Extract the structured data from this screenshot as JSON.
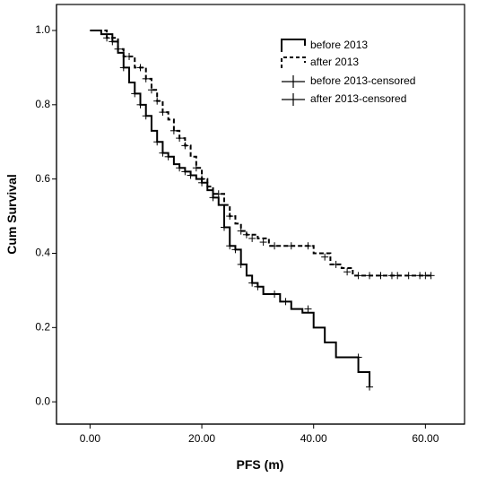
{
  "chart_data": {
    "type": "line",
    "subtype": "kaplan-meier step curve",
    "title": "",
    "xlabel": "PFS (m)",
    "ylabel": "Cum Survival",
    "xlim": [
      -6,
      67
    ],
    "ylim": [
      -0.06,
      1.07
    ],
    "x_ticks": [
      "0.00",
      "20.00",
      "40.00",
      "60.00"
    ],
    "x_tick_values": [
      0,
      20,
      40,
      60
    ],
    "y_ticks": [
      "0.0",
      "0.2",
      "0.4",
      "0.6",
      "0.8",
      "1.0"
    ],
    "y_tick_values": [
      0,
      0.2,
      0.4,
      0.6,
      0.8,
      1.0
    ],
    "grid": false,
    "legend_position": "top-right",
    "legend": [
      {
        "label": "before 2013",
        "style": "solid-step"
      },
      {
        "label": "after 2013",
        "style": "dashed-step"
      },
      {
        "label": "before 2013-censored",
        "style": "censor-mark"
      },
      {
        "label": "after 2013-censored",
        "style": "censor-mark"
      }
    ],
    "series": [
      {
        "name": "before 2013",
        "style": "solid",
        "points": [
          [
            0,
            1.0
          ],
          [
            2,
            0.99
          ],
          [
            4,
            0.97
          ],
          [
            5,
            0.94
          ],
          [
            6,
            0.9
          ],
          [
            7,
            0.86
          ],
          [
            8,
            0.83
          ],
          [
            9,
            0.8
          ],
          [
            10,
            0.77
          ],
          [
            11,
            0.73
          ],
          [
            12,
            0.7
          ],
          [
            13,
            0.67
          ],
          [
            14,
            0.66
          ],
          [
            15,
            0.64
          ],
          [
            16,
            0.63
          ],
          [
            17,
            0.62
          ],
          [
            18,
            0.61
          ],
          [
            19,
            0.6
          ],
          [
            20,
            0.59
          ],
          [
            21,
            0.57
          ],
          [
            22,
            0.55
          ],
          [
            23,
            0.53
          ],
          [
            24,
            0.47
          ],
          [
            25,
            0.42
          ],
          [
            26,
            0.41
          ],
          [
            27,
            0.37
          ],
          [
            28,
            0.34
          ],
          [
            29,
            0.32
          ],
          [
            30,
            0.31
          ],
          [
            31,
            0.29
          ],
          [
            34,
            0.27
          ],
          [
            36,
            0.25
          ],
          [
            38,
            0.24
          ],
          [
            40,
            0.2
          ],
          [
            42,
            0.16
          ],
          [
            44,
            0.12
          ],
          [
            48,
            0.08
          ],
          [
            50,
            0.04
          ]
        ],
        "censored": [
          [
            4,
            0.97
          ],
          [
            6,
            0.9
          ],
          [
            8,
            0.83
          ],
          [
            9,
            0.8
          ],
          [
            10,
            0.77
          ],
          [
            12,
            0.7
          ],
          [
            13,
            0.67
          ],
          [
            14,
            0.66
          ],
          [
            16,
            0.63
          ],
          [
            17,
            0.62
          ],
          [
            18,
            0.61
          ],
          [
            20,
            0.59
          ],
          [
            22,
            0.55
          ],
          [
            24,
            0.47
          ],
          [
            25,
            0.42
          ],
          [
            26,
            0.41
          ],
          [
            27,
            0.37
          ],
          [
            29,
            0.32
          ],
          [
            30,
            0.31
          ],
          [
            33,
            0.29
          ],
          [
            35,
            0.27
          ],
          [
            39,
            0.25
          ],
          [
            48,
            0.12
          ],
          [
            50,
            0.04
          ]
        ]
      },
      {
        "name": "after 2013",
        "style": "dashed",
        "points": [
          [
            0,
            1.0
          ],
          [
            3,
            0.98
          ],
          [
            5,
            0.95
          ],
          [
            6,
            0.93
          ],
          [
            8,
            0.9
          ],
          [
            10,
            0.87
          ],
          [
            11,
            0.84
          ],
          [
            12,
            0.81
          ],
          [
            13,
            0.78
          ],
          [
            14,
            0.76
          ],
          [
            15,
            0.73
          ],
          [
            16,
            0.71
          ],
          [
            17,
            0.69
          ],
          [
            18,
            0.66
          ],
          [
            19,
            0.63
          ],
          [
            20,
            0.6
          ],
          [
            21,
            0.58
          ],
          [
            22,
            0.56
          ],
          [
            24,
            0.53
          ],
          [
            25,
            0.5
          ],
          [
            26,
            0.48
          ],
          [
            27,
            0.46
          ],
          [
            28,
            0.45
          ],
          [
            30,
            0.44
          ],
          [
            32,
            0.42
          ],
          [
            37,
            0.42
          ],
          [
            40,
            0.4
          ],
          [
            43,
            0.37
          ],
          [
            45,
            0.36
          ],
          [
            47,
            0.34
          ],
          [
            61,
            0.34
          ]
        ],
        "censored": [
          [
            3,
            0.98
          ],
          [
            5,
            0.95
          ],
          [
            7,
            0.93
          ],
          [
            9,
            0.9
          ],
          [
            10,
            0.87
          ],
          [
            11,
            0.84
          ],
          [
            12,
            0.81
          ],
          [
            13,
            0.78
          ],
          [
            15,
            0.73
          ],
          [
            16,
            0.71
          ],
          [
            17,
            0.69
          ],
          [
            19,
            0.63
          ],
          [
            20,
            0.6
          ],
          [
            23,
            0.56
          ],
          [
            25,
            0.5
          ],
          [
            27,
            0.46
          ],
          [
            28,
            0.45
          ],
          [
            29,
            0.44
          ],
          [
            31,
            0.43
          ],
          [
            33,
            0.42
          ],
          [
            36,
            0.42
          ],
          [
            39,
            0.42
          ],
          [
            42,
            0.39
          ],
          [
            44,
            0.37
          ],
          [
            46,
            0.35
          ],
          [
            48,
            0.34
          ],
          [
            50,
            0.34
          ],
          [
            52,
            0.34
          ],
          [
            54,
            0.34
          ],
          [
            55,
            0.34
          ],
          [
            57,
            0.34
          ],
          [
            59,
            0.34
          ],
          [
            60,
            0.34
          ],
          [
            61,
            0.34
          ]
        ]
      }
    ]
  }
}
